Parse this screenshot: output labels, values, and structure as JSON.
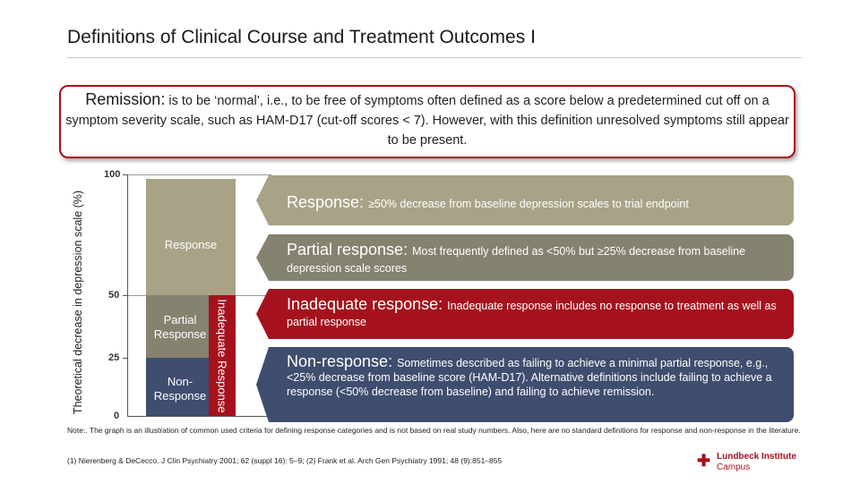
{
  "title": "Definitions of Clinical Course and Treatment Outcomes I",
  "remission": {
    "heading": "Remission:",
    "text": " is to be ‘normal’, i.e., to be free of symptoms often defined as a score below a predetermined cut off on a symptom severity scale, such as HAM-D17 (cut-off scores < 7). However, with this definition unresolved symptoms still appear to be present."
  },
  "chart_data": {
    "type": "bar",
    "ylabel": "Theoretical decrease in depression scale (%)",
    "ylim": [
      0,
      100
    ],
    "ticks": [
      "100",
      "50",
      "25",
      "0"
    ],
    "segments": [
      {
        "name": "Response",
        "range": [
          50,
          100
        ]
      },
      {
        "name": "Partial Response",
        "range": [
          25,
          50
        ]
      },
      {
        "name": "Non-Response",
        "range": [
          0,
          25
        ]
      },
      {
        "name": "Inadequate Response",
        "range": [
          0,
          50
        ]
      }
    ]
  },
  "bars": {
    "response": "Response",
    "partial": "Partial Response",
    "non": "Non-Response",
    "inadequate": "Inadequate Response"
  },
  "definitions": {
    "response_head": "Response: ",
    "response_text": "≥50% decrease from baseline depression scales to trial endpoint",
    "partial_head": "Partial response: ",
    "partial_text": "Most frequently defined as <50% but ≥25% decrease from baseline depression scale scores",
    "inadequate_head": "Inadequate response: ",
    "inadequate_text": "Inadequate response includes no response to treatment as well as partial response",
    "non_head": "Non-response: ",
    "non_text": "Sometimes described as failing to achieve a minimal partial response, e.g., <25% decrease from baseline score (HAM-D17). Alternative definitions include failing to achieve a response (<50% decrease from baseline) and failing to achieve remission."
  },
  "note": "Note:. The graph is an illustration of common used criteria for defining response categories and is not based on real study numbers. Also, here are no standard definitions for response and non-response in the literature.",
  "reference": "(1) Nierenberg & DeCecco. J Clin Psychiatry 2001; 62 (suppl 16): 5–9; (2) Frank et al. Arch Gen Psychiatry 1991; 48 (9):851–855",
  "logo": {
    "line1": "Lundbeck Institute",
    "line2": "Campus",
    "icon": "lundbeck-logo-icon"
  }
}
